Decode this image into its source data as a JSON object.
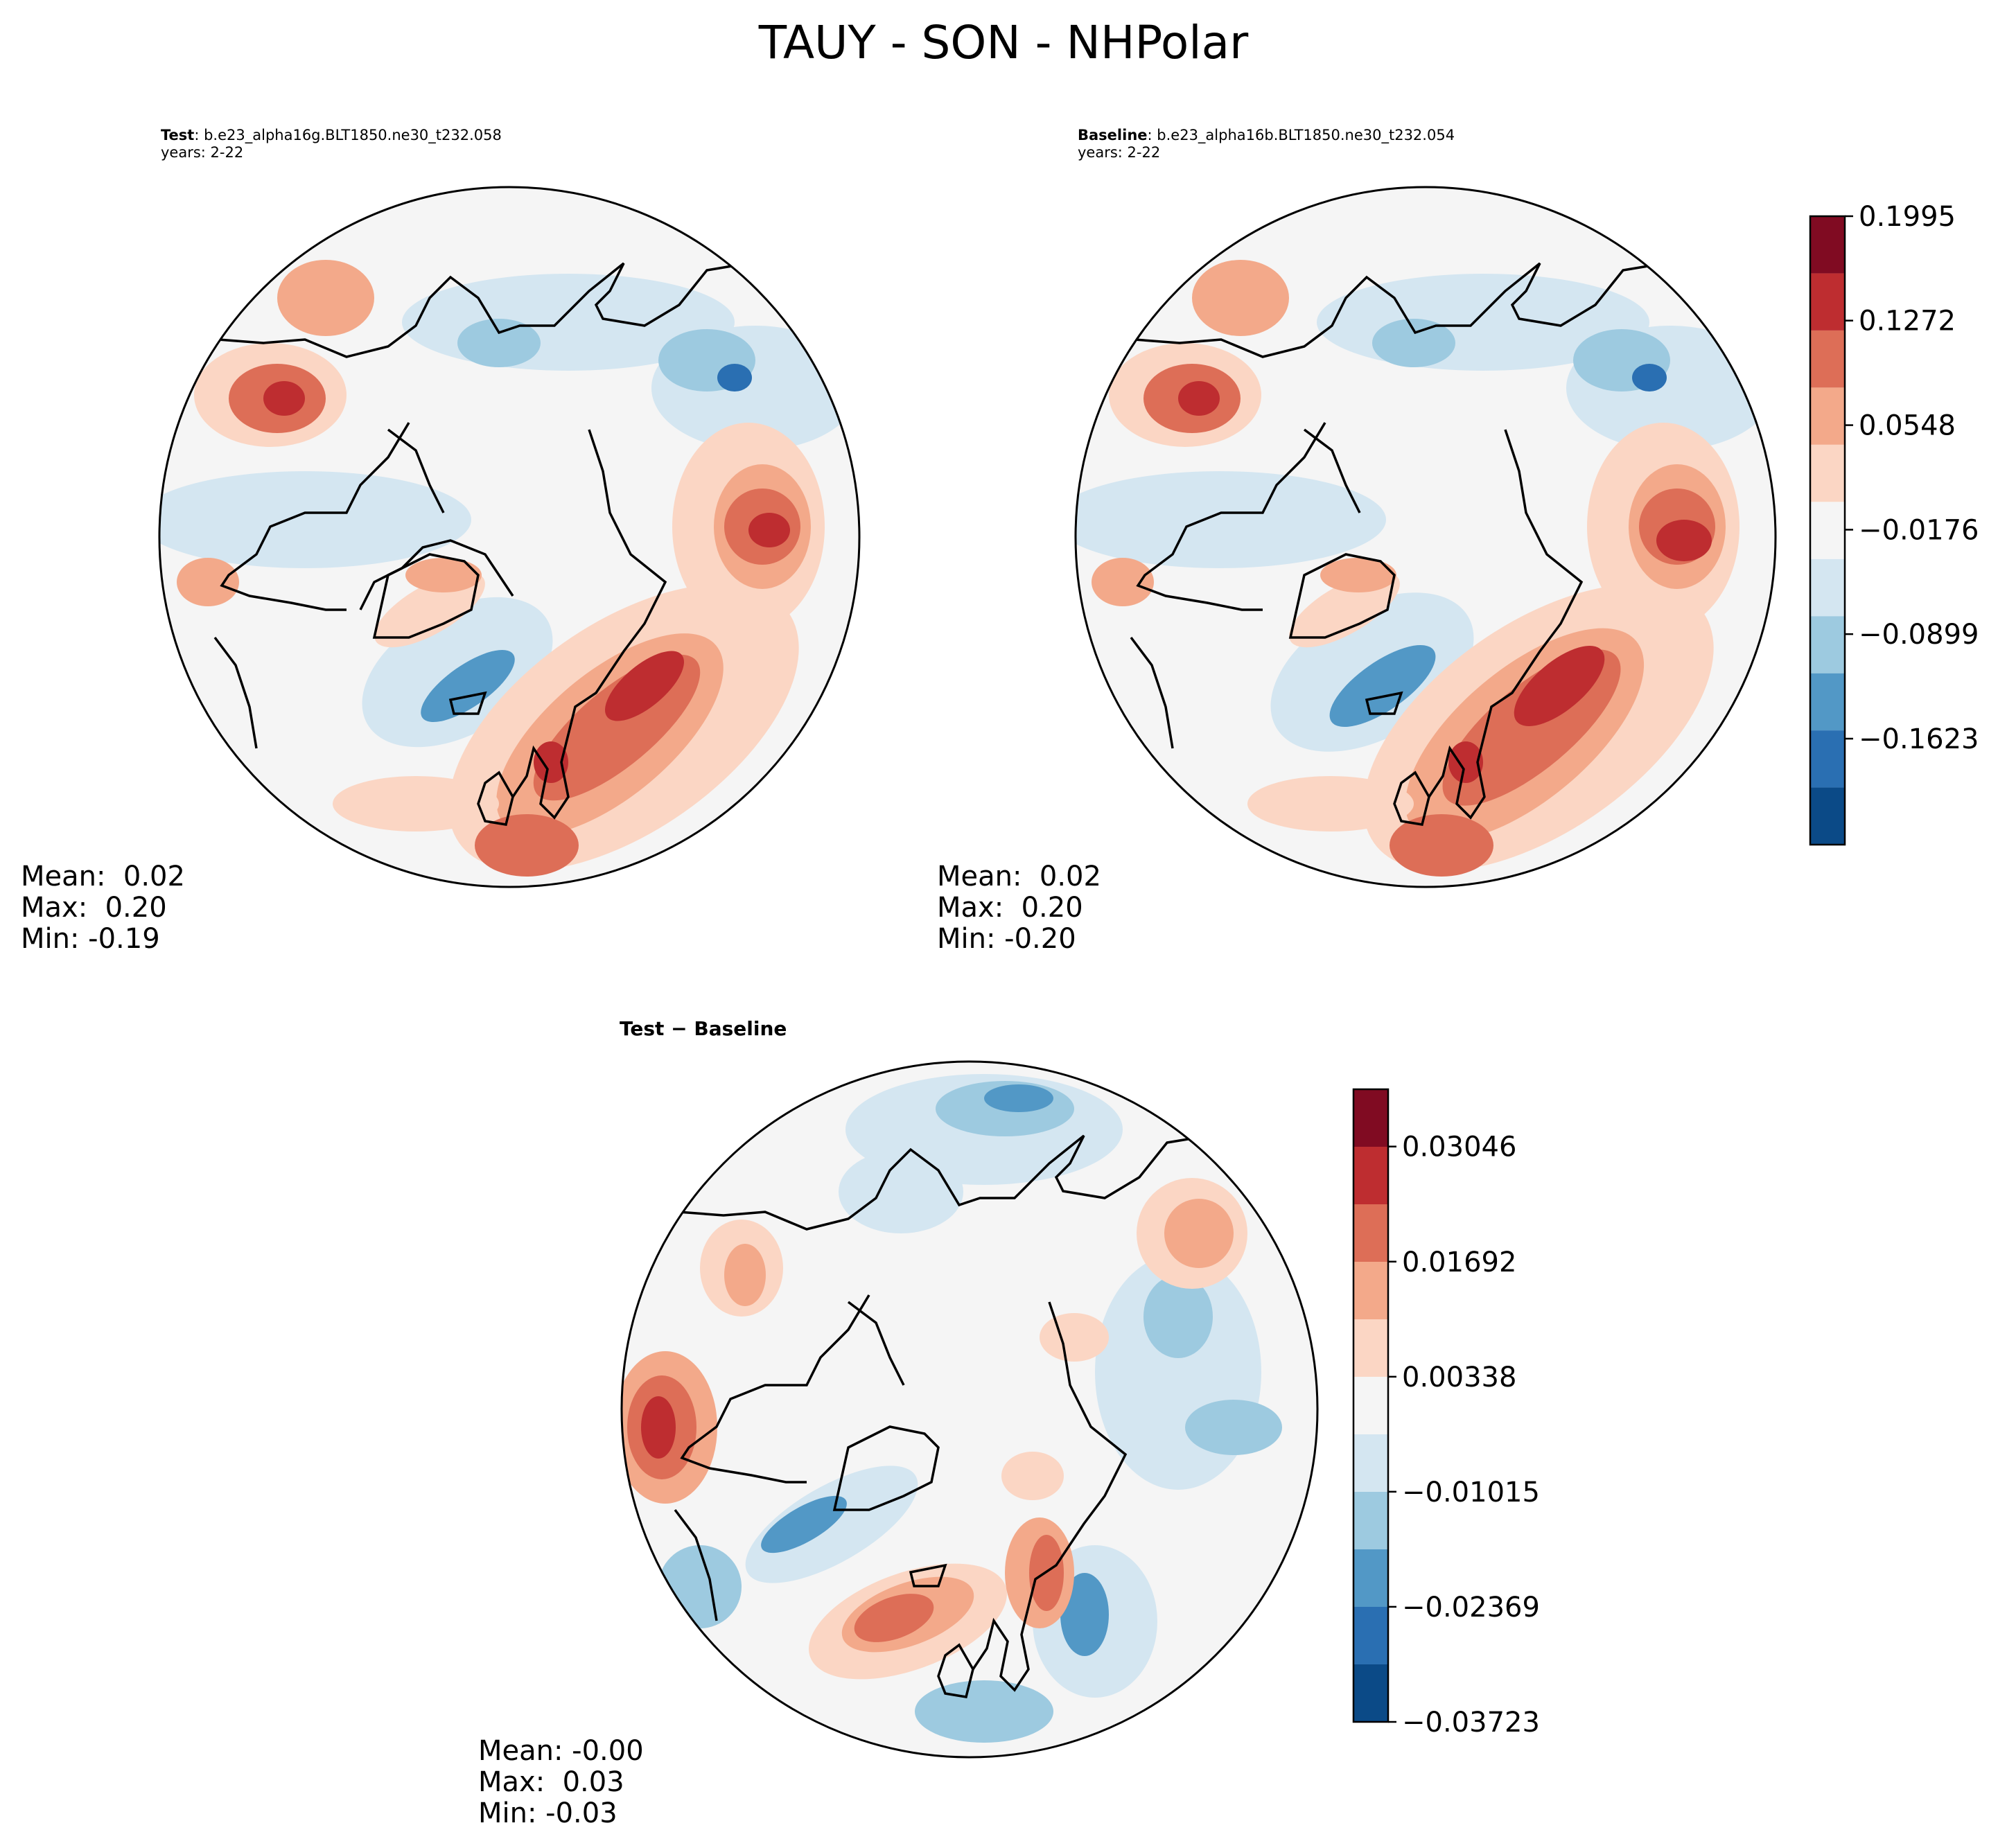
{
  "figure_title": "TAUY - SON - NHPolar",
  "panels": {
    "test": {
      "label": "Test",
      "case": "b.e23_alpha16g.BLT1850.ne30_t232.058",
      "years": "years: 2-22",
      "stats": {
        "mean": "Mean:  0.02",
        "max": "Max:  0.20",
        "min": "Min: -0.19"
      }
    },
    "baseline": {
      "label": "Baseline",
      "case": "b.e23_alpha16b.BLT1850.ne30_t232.054",
      "years": "years: 2-22",
      "stats": {
        "mean": "Mean:  0.02",
        "max": "Max:  0.20",
        "min": "Min: -0.20"
      }
    },
    "diff": {
      "label": "Test − Baseline",
      "stats": {
        "mean": "Mean: -0.00",
        "max": "Max:  0.03",
        "min": "Min: -0.03"
      }
    }
  },
  "chart_data": [
    {
      "type": "heatmap",
      "projection": "north-polar-stereographic",
      "variable": "TAUY",
      "season": "SON",
      "panels": [
        "Test",
        "Baseline"
      ],
      "colormap": "RdBu_r",
      "colorbar": {
        "range": [
          -0.2357,
          0.1995
        ],
        "levels": 11,
        "colors": [
          "#0b4a87",
          "#2a6fb2",
          "#5298c6",
          "#9dcae0",
          "#d4e6f1",
          "#f5f5f5",
          "#fbd6c4",
          "#f3a98a",
          "#dd6e57",
          "#be2d30",
          "#800b22"
        ],
        "ticks": [
          "0.1995",
          "0.1272",
          "0.0548",
          "−0.0176",
          "−0.0899",
          "−0.1623"
        ],
        "tick_values": [
          0.1995,
          0.1272,
          0.0548,
          -0.0176,
          -0.0899,
          -0.1623
        ]
      }
    },
    {
      "type": "heatmap",
      "projection": "north-polar-stereographic",
      "variable": "TAUY difference",
      "panels": [
        "Test − Baseline"
      ],
      "colormap": "RdBu_r",
      "colorbar": {
        "range": [
          -0.03723,
          0.0372
        ],
        "levels": 11,
        "colors": [
          "#0b4a87",
          "#2a6fb2",
          "#5298c6",
          "#9dcae0",
          "#d4e6f1",
          "#f5f5f5",
          "#fbd6c4",
          "#f3a98a",
          "#dd6e57",
          "#be2d30",
          "#800b22"
        ],
        "ticks": [
          "0.03046",
          "0.01692",
          "0.00338",
          "−0.01015",
          "−0.02369",
          "−0.03723"
        ],
        "tick_values": [
          0.03046,
          0.01692,
          0.00338,
          -0.01015,
          -0.02369,
          -0.03723
        ]
      }
    }
  ]
}
